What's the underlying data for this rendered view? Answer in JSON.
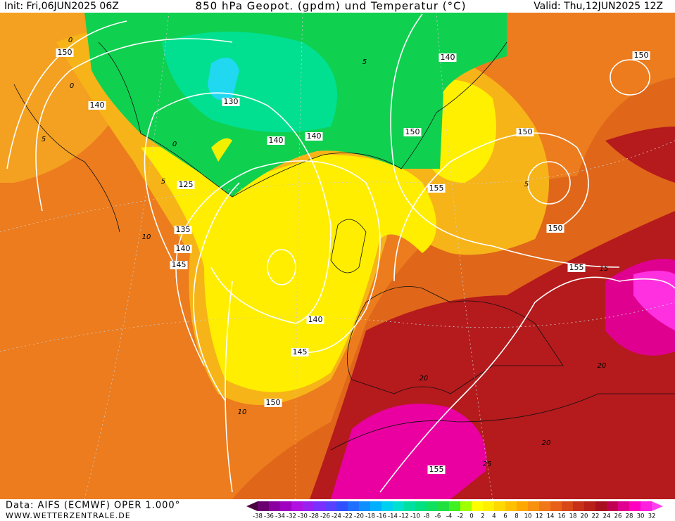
{
  "header": {
    "init": "Init: Fri,06JUN2025 06Z",
    "title": "850 hPa Geopot. (gpdm) und Temperatur (°C)",
    "valid": "Valid: Thu,12JUN2025 12Z"
  },
  "footer": {
    "data": "Data: AIFS (ECMWF) OPER 1.000°",
    "site": "WWW.WETTERZENTRALE.DE"
  },
  "geopotential_labels": [
    "150",
    "140",
    "130",
    "140",
    "140",
    "150",
    "140",
    "150",
    "155",
    "150",
    "150",
    "125",
    "135",
    "140",
    "145",
    "140",
    "145",
    "150",
    "155",
    "155"
  ],
  "temperature_labels": [
    "0",
    "5",
    "0",
    "5",
    "0",
    "5",
    "10",
    "5",
    "10",
    "15",
    "20",
    "20",
    "25",
    "20"
  ],
  "colorbar": {
    "labels": [
      -38,
      -36,
      -34,
      -32,
      -30,
      -28,
      -26,
      -24,
      -22,
      -20,
      -18,
      -16,
      -14,
      -12,
      -10,
      -8,
      -6,
      -4,
      -2,
      0,
      2,
      4,
      6,
      8,
      10,
      12,
      14,
      16,
      18,
      20,
      22,
      24,
      26,
      28,
      30,
      32
    ],
    "colors": [
      "#4b0040",
      "#6a0070",
      "#8a00a0",
      "#a000c0",
      "#b010e0",
      "#9a20f0",
      "#7a30ff",
      "#5a40ff",
      "#3050ff",
      "#2070ff",
      "#1090ff",
      "#00b0ff",
      "#00d0f0",
      "#00e0d0",
      "#00e0a0",
      "#00e080",
      "#10e060",
      "#20e040",
      "#40f020",
      "#a0ff00",
      "#ffff00",
      "#fff000",
      "#ffd800",
      "#ffc000",
      "#ffa800",
      "#f89010",
      "#f07818",
      "#e86018",
      "#d84818",
      "#c83018",
      "#b82018",
      "#a81020",
      "#c00050",
      "#e00090",
      "#ff00c0",
      "#ff20e0",
      "#ff40f0"
    ]
  }
}
